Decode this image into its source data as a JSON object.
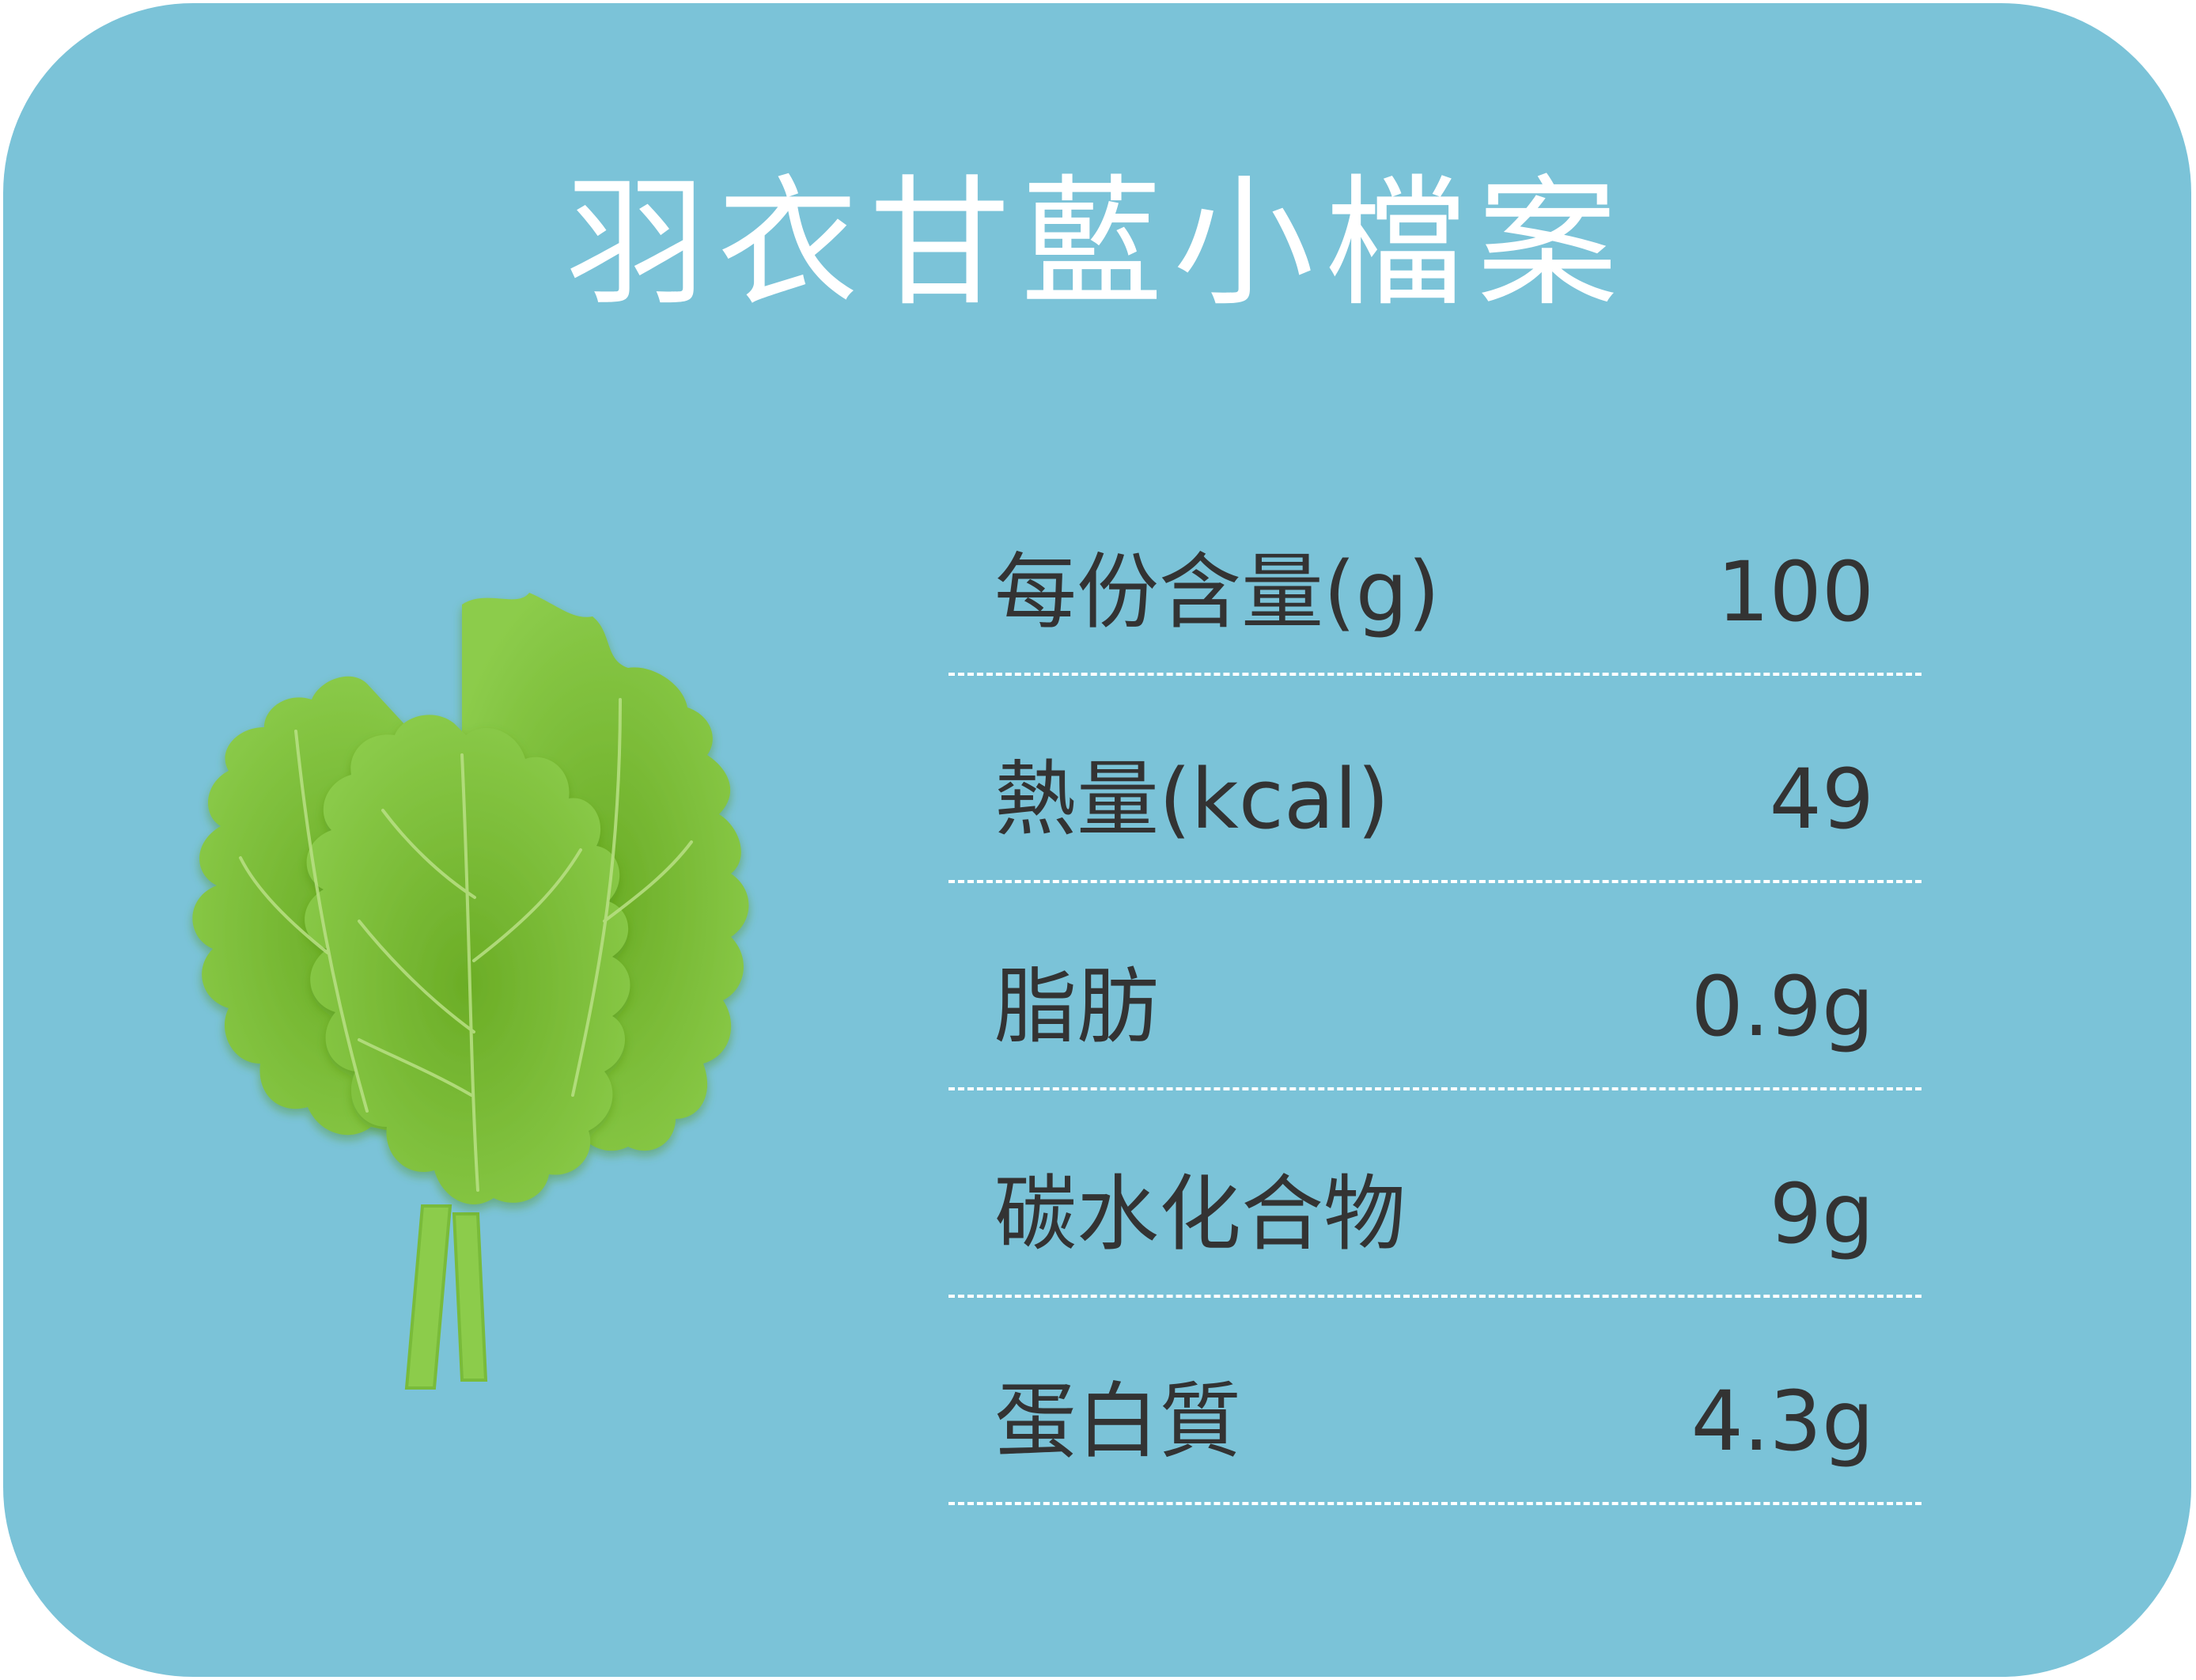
{
  "colors": {
    "background": "#7bc3d8",
    "title_text": "#ffffff",
    "body_text": "#333333",
    "divider": "#ffffff",
    "kale_light": "#8ccc4b",
    "kale_dark": "#6bad26"
  },
  "title": "羽衣甘藍小檔案",
  "illustration": {
    "icon": "kale-leaf-icon"
  },
  "nutrition": [
    {
      "label": "每份含量(g)",
      "value": "100"
    },
    {
      "label": "熱量(kcal)",
      "value": "49"
    },
    {
      "label": "脂肪",
      "value": "0.9g"
    },
    {
      "label": "碳水化合物",
      "value": "9g"
    },
    {
      "label": "蛋白質",
      "value": "4.3g"
    }
  ]
}
